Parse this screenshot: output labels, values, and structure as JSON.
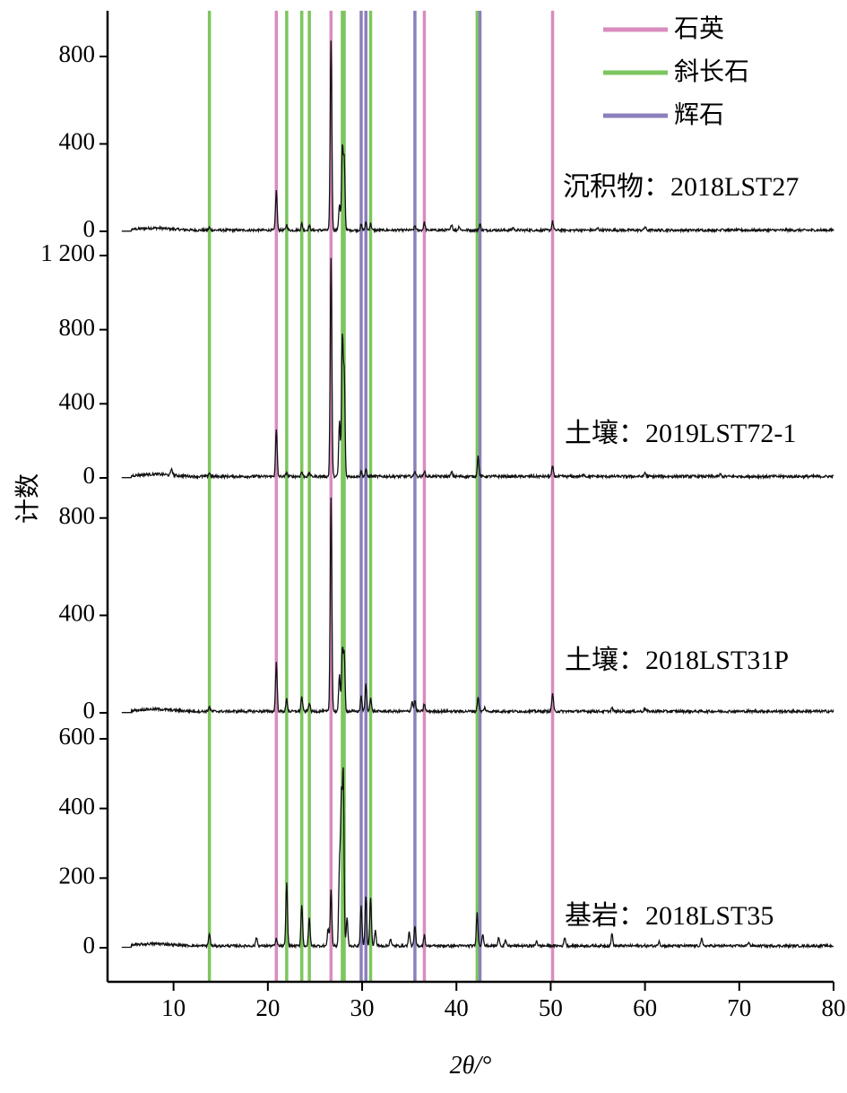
{
  "chart_data": {
    "type": "line",
    "xlabel": "2θ/°",
    "ylabel": "计数",
    "xlim": [
      3,
      80
    ],
    "x_ticks": [
      10,
      20,
      30,
      40,
      50,
      60,
      70,
      80
    ],
    "legend": {
      "placement": "top-right",
      "items": [
        {
          "name": "石英",
          "color": "#d98cbf"
        },
        {
          "name": "斜长石",
          "color": "#7cc65e"
        },
        {
          "name": "辉石",
          "color": "#8c7fbb"
        }
      ]
    },
    "reference_lines": {
      "石英": [
        20.9,
        26.7,
        36.6,
        50.2
      ],
      "斜长石": [
        13.8,
        22.0,
        23.6,
        24.4,
        27.9,
        28.1,
        30.9,
        42.2
      ],
      "辉石": [
        29.9,
        30.4,
        35.6,
        42.5
      ]
    },
    "panels": [
      {
        "label": "沉积物：2018LST27",
        "y_ticks": [
          0,
          400,
          800
        ],
        "y_tick_labels": [
          "0",
          "400",
          "800"
        ],
        "ylim": [
          0,
          960
        ],
        "baseline": 3,
        "peaks": [
          [
            13.8,
            12
          ],
          [
            20.9,
            180
          ],
          [
            22.0,
            25
          ],
          [
            23.6,
            30
          ],
          [
            24.4,
            22
          ],
          [
            26.7,
            870
          ],
          [
            27.6,
            120
          ],
          [
            27.9,
            370
          ],
          [
            28.1,
            320
          ],
          [
            29.9,
            25
          ],
          [
            30.4,
            35
          ],
          [
            30.9,
            30
          ],
          [
            35.6,
            20
          ],
          [
            36.6,
            35
          ],
          [
            39.5,
            28
          ],
          [
            40.3,
            18
          ],
          [
            42.5,
            28
          ],
          [
            46.0,
            12
          ],
          [
            50.2,
            40
          ],
          [
            55.0,
            10
          ],
          [
            60.0,
            15
          ],
          [
            68.2,
            10
          ]
        ]
      },
      {
        "label": "土壤：2019LST72-1",
        "y_ticks": [
          0,
          400,
          800,
          1200
        ],
        "y_tick_labels": [
          "0",
          "400",
          "800",
          "1 200"
        ],
        "ylim": [
          0,
          1200
        ],
        "baseline": 5,
        "peaks": [
          [
            9.8,
            35
          ],
          [
            13.8,
            20
          ],
          [
            20.9,
            250
          ],
          [
            22.0,
            22
          ],
          [
            23.6,
            25
          ],
          [
            24.4,
            20
          ],
          [
            26.7,
            1180
          ],
          [
            27.6,
            300
          ],
          [
            27.9,
            740
          ],
          [
            28.1,
            550
          ],
          [
            29.9,
            25
          ],
          [
            30.4,
            35
          ],
          [
            35.6,
            30
          ],
          [
            36.6,
            30
          ],
          [
            39.5,
            22
          ],
          [
            42.3,
            110
          ],
          [
            50.2,
            55
          ],
          [
            53.5,
            15
          ],
          [
            60.0,
            22
          ],
          [
            68.0,
            12
          ]
        ]
      },
      {
        "label": "土壤：2018LST31P",
        "y_ticks": [
          0,
          400,
          800
        ],
        "y_tick_labels": [
          "0",
          "400",
          "800"
        ],
        "ylim": [
          0,
          880
        ],
        "baseline": 4,
        "peaks": [
          [
            13.8,
            20
          ],
          [
            20.9,
            200
          ],
          [
            22.0,
            50
          ],
          [
            23.6,
            60
          ],
          [
            24.4,
            35
          ],
          [
            26.7,
            880
          ],
          [
            27.6,
            150
          ],
          [
            27.9,
            250
          ],
          [
            28.1,
            230
          ],
          [
            29.9,
            60
          ],
          [
            30.4,
            110
          ],
          [
            30.9,
            55
          ],
          [
            35.3,
            40
          ],
          [
            35.6,
            45
          ],
          [
            36.6,
            30
          ],
          [
            42.3,
            60
          ],
          [
            43.0,
            15
          ],
          [
            50.2,
            75
          ],
          [
            56.5,
            15
          ],
          [
            60.0,
            12
          ]
        ]
      },
      {
        "label": "基岩：2018LST35",
        "y_ticks": [
          0,
          200,
          400,
          600
        ],
        "y_tick_labels": [
          "0",
          "200",
          "400",
          "600"
        ],
        "ylim": [
          0,
          600
        ],
        "baseline": 4,
        "peaks": [
          [
            13.8,
            35
          ],
          [
            18.8,
            25
          ],
          [
            20.9,
            20
          ],
          [
            22.0,
            180
          ],
          [
            23.6,
            120
          ],
          [
            24.4,
            80
          ],
          [
            26.4,
            50
          ],
          [
            26.7,
            160
          ],
          [
            27.6,
            230
          ],
          [
            27.8,
            410
          ],
          [
            28.0,
            490
          ],
          [
            28.4,
            80
          ],
          [
            29.9,
            115
          ],
          [
            30.4,
            145
          ],
          [
            30.9,
            140
          ],
          [
            31.4,
            45
          ],
          [
            33.0,
            20
          ],
          [
            35.0,
            40
          ],
          [
            35.6,
            55
          ],
          [
            36.6,
            30
          ],
          [
            42.2,
            95
          ],
          [
            42.8,
            35
          ],
          [
            44.5,
            25
          ],
          [
            45.2,
            15
          ],
          [
            48.5,
            15
          ],
          [
            51.5,
            25
          ],
          [
            56.5,
            35
          ],
          [
            61.5,
            15
          ],
          [
            66.0,
            20
          ],
          [
            71.0,
            12
          ]
        ]
      }
    ]
  }
}
